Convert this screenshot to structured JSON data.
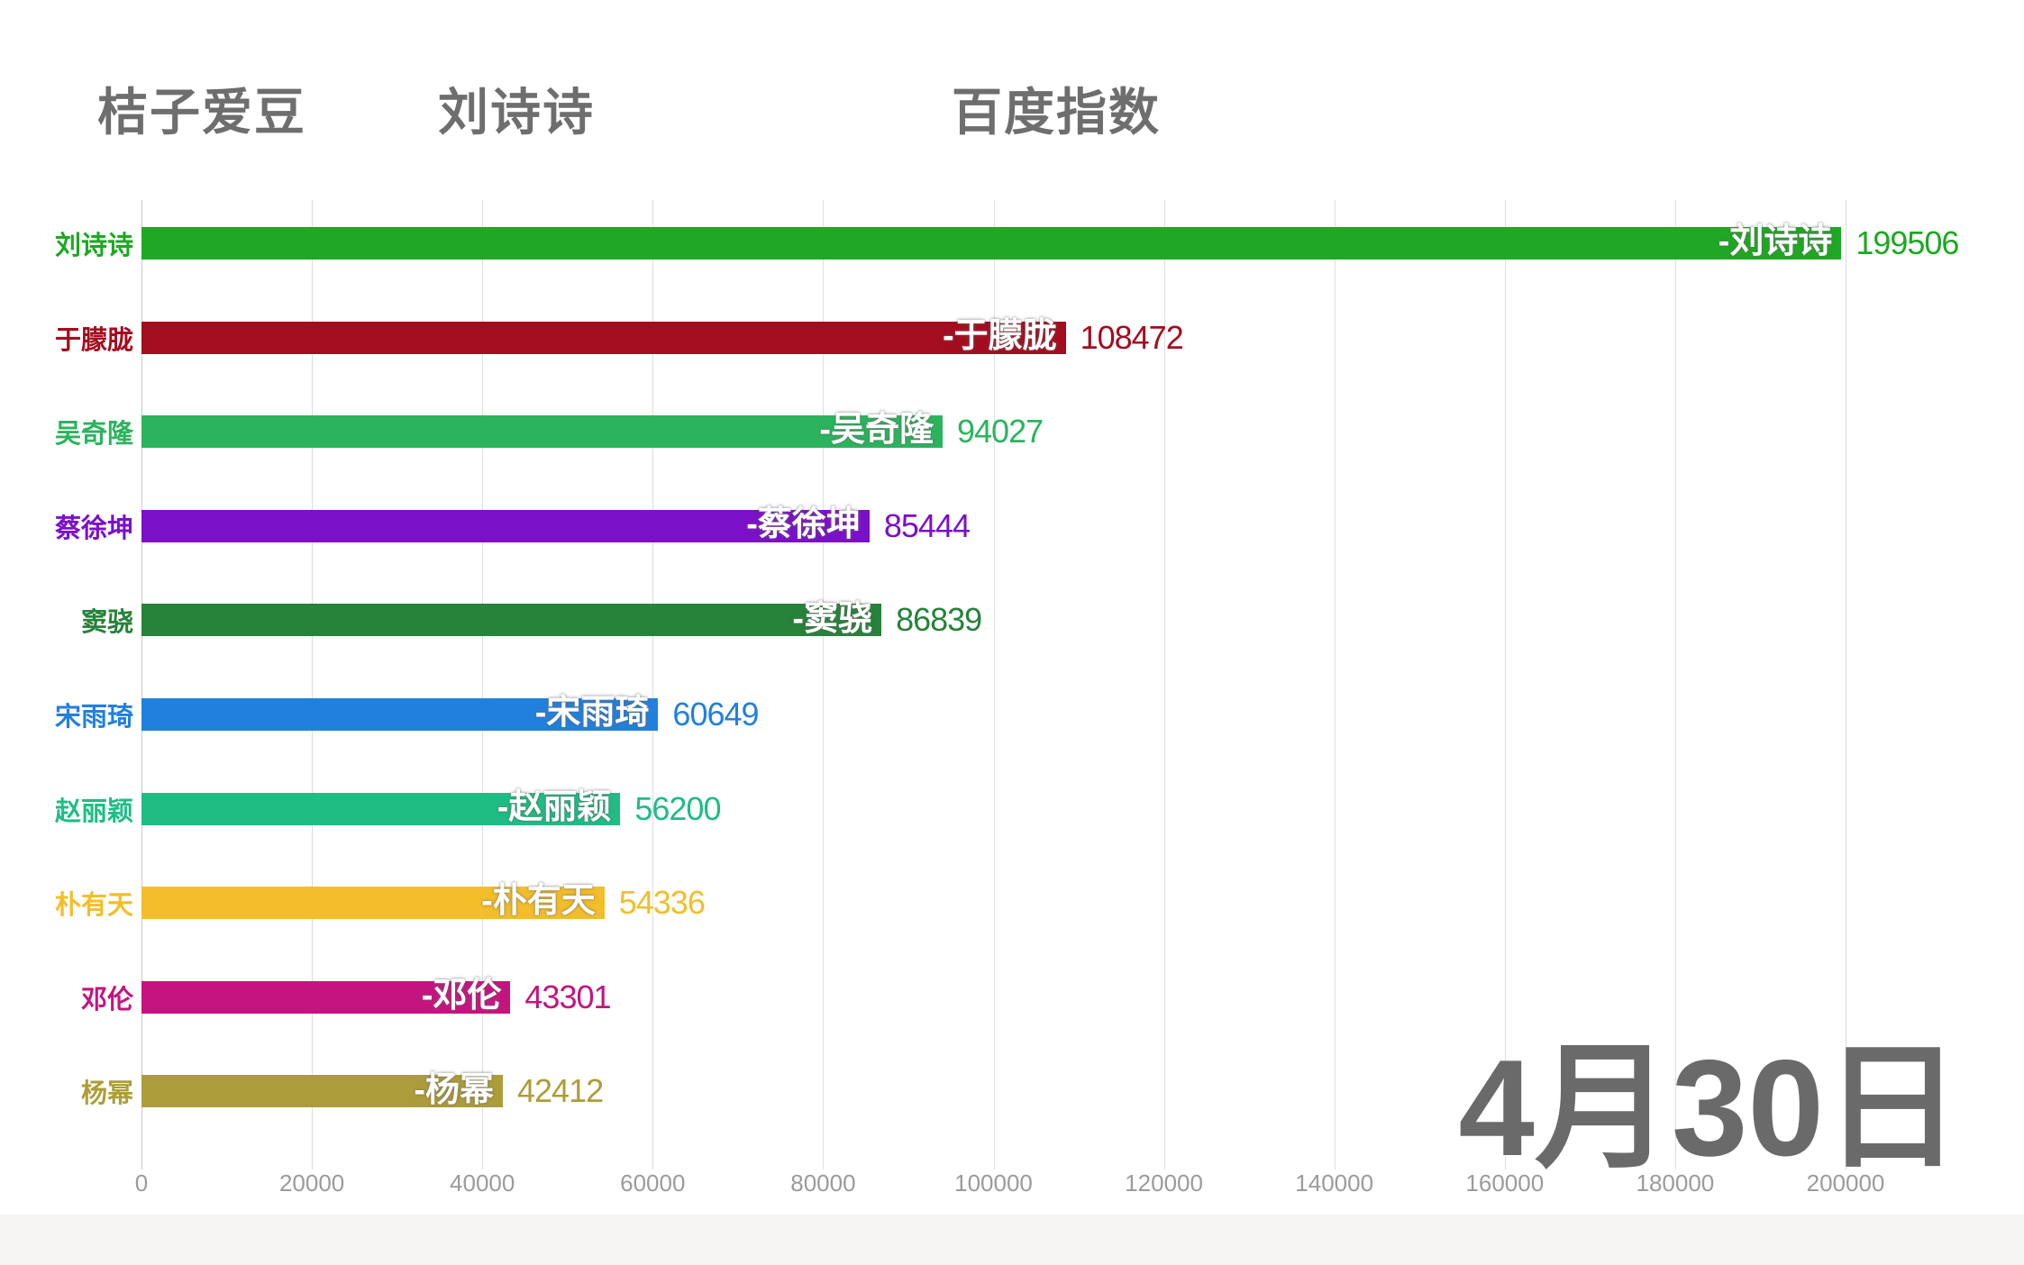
{
  "header": {
    "left": "桔子爱豆",
    "center": "刘诗诗",
    "right": "百度指数"
  },
  "date_label": "4月30日",
  "axis": {
    "max": 200000,
    "ticks": [
      0,
      20000,
      40000,
      60000,
      80000,
      100000,
      120000,
      140000,
      160000,
      180000,
      200000
    ]
  },
  "bars": [
    {
      "name": "刘诗诗",
      "bar_label": "-刘诗诗",
      "value": 199506,
      "value_text": "199506",
      "color": "#1EA823"
    },
    {
      "name": "于朦胧",
      "bar_label": "-于朦胧",
      "value": 108472,
      "value_text": "108472",
      "color": "#A30D1F"
    },
    {
      "name": "吴奇隆",
      "bar_label": "-吴奇隆",
      "value": 94027,
      "value_text": "94027",
      "color": "#2BB45D"
    },
    {
      "name": "蔡徐坤",
      "bar_label": "-蔡徐坤",
      "value": 85444,
      "value_text": "85444",
      "color": "#7B10C9"
    },
    {
      "name": "窦骁",
      "bar_label": "-窦骁",
      "value": 86839,
      "value_text": "86839",
      "color": "#27823A"
    },
    {
      "name": "宋雨琦",
      "bar_label": "-宋雨琦",
      "value": 60649,
      "value_text": "60649",
      "color": "#2280DD"
    },
    {
      "name": "赵丽颖",
      "bar_label": "-赵丽颖",
      "value": 56200,
      "value_text": "56200",
      "color": "#1FBD84"
    },
    {
      "name": "朴有天",
      "bar_label": "-朴有天",
      "value": 54336,
      "value_text": "54336",
      "color": "#F3BE29"
    },
    {
      "name": "邓伦",
      "bar_label": "-邓伦",
      "value": 43301,
      "value_text": "43301",
      "color": "#C5147F"
    },
    {
      "name": "杨幂",
      "bar_label": "-杨幂",
      "value": 42412,
      "value_text": "42412",
      "color": "#AD9D3A"
    }
  ],
  "colors": {
    "header_text": "#6e6e6e",
    "tick_text": "#9b9b9b",
    "gridline": "#dedede",
    "date_text": "#6a6a6a",
    "background": "#ffffff"
  },
  "chart_data": {
    "type": "bar",
    "orientation": "horizontal",
    "title": "桔子爱豆 刘诗诗 百度指数",
    "categories": [
      "刘诗诗",
      "于朦胧",
      "吴奇隆",
      "蔡徐坤",
      "窦骁",
      "宋雨琦",
      "赵丽颖",
      "朴有天",
      "邓伦",
      "杨幂"
    ],
    "values": [
      199506,
      108472,
      94027,
      85444,
      86839,
      60649,
      56200,
      54336,
      43301,
      42412
    ],
    "colors": [
      "#1EA823",
      "#A30D1F",
      "#2BB45D",
      "#7B10C9",
      "#27823A",
      "#2280DD",
      "#1FBD84",
      "#F3BE29",
      "#C5147F",
      "#AD9D3A"
    ],
    "xlabel": "",
    "ylabel": "",
    "xlim": [
      0,
      200000
    ],
    "xticks": [
      0,
      20000,
      40000,
      60000,
      80000,
      100000,
      120000,
      140000,
      160000,
      180000,
      200000
    ],
    "grid": true,
    "legend": false,
    "annotation": "4月30日"
  }
}
